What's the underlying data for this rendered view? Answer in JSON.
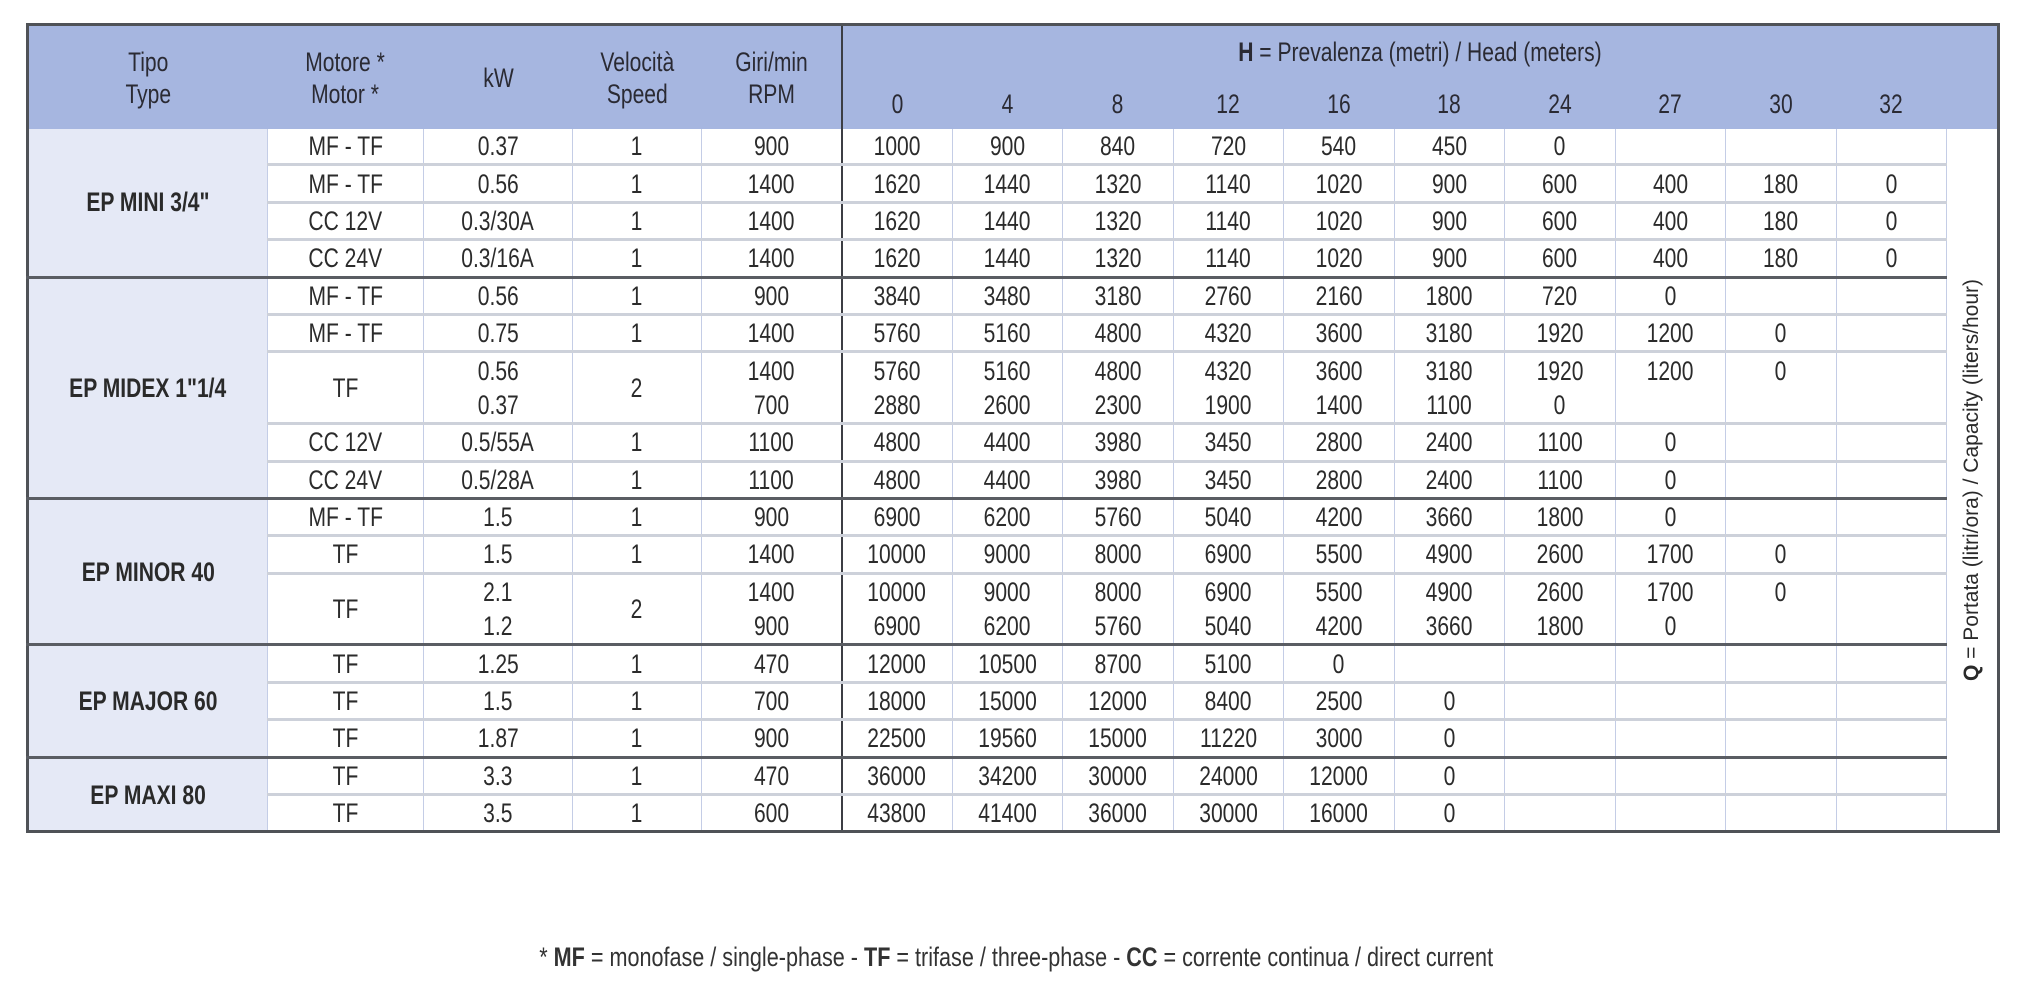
{
  "header": {
    "tipo": [
      "Tipo",
      "Type"
    ],
    "motor": [
      "Motore *",
      "Motor *"
    ],
    "kw": "kW",
    "speed": [
      "Velocità",
      "Speed"
    ],
    "rpm": [
      "Giri/min",
      "RPM"
    ],
    "head_title_bold": "H",
    "head_title_rest": " = Prevalenza (metri) / Head (meters)",
    "heads": [
      "0",
      "4",
      "8",
      "12",
      "16",
      "18",
      "24",
      "27",
      "30",
      "32"
    ]
  },
  "capacity_label": {
    "bold": "Q",
    "rest": " = Portata (litri/ora) / Capacity (liters/hour)"
  },
  "groups": [
    {
      "name": "EP MINI 3/4\"",
      "entries": [
        {
          "motor": "MF - TF",
          "speed": "1",
          "lines": [
            {
              "kw": "0.37",
              "rpm": "900",
              "q": [
                "1000",
                "900",
                "840",
                "720",
                "540",
                "450",
                "0",
                "",
                "",
                ""
              ]
            }
          ]
        },
        {
          "motor": "MF - TF",
          "speed": "1",
          "lines": [
            {
              "kw": "0.56",
              "rpm": "1400",
              "q": [
                "1620",
                "1440",
                "1320",
                "1140",
                "1020",
                "900",
                "600",
                "400",
                "180",
                "0"
              ]
            }
          ]
        },
        {
          "motor": "CC 12V",
          "speed": "1",
          "lines": [
            {
              "kw": "0.3/30A",
              "rpm": "1400",
              "q": [
                "1620",
                "1440",
                "1320",
                "1140",
                "1020",
                "900",
                "600",
                "400",
                "180",
                "0"
              ]
            }
          ]
        },
        {
          "motor": "CC 24V",
          "speed": "1",
          "lines": [
            {
              "kw": "0.3/16A",
              "rpm": "1400",
              "q": [
                "1620",
                "1440",
                "1320",
                "1140",
                "1020",
                "900",
                "600",
                "400",
                "180",
                "0"
              ]
            }
          ]
        }
      ]
    },
    {
      "name": "EP MIDEX 1\"1/4",
      "entries": [
        {
          "motor": "MF - TF",
          "speed": "1",
          "lines": [
            {
              "kw": "0.56",
              "rpm": "900",
              "q": [
                "3840",
                "3480",
                "3180",
                "2760",
                "2160",
                "1800",
                "720",
                "0",
                "",
                ""
              ]
            }
          ]
        },
        {
          "motor": "MF - TF",
          "speed": "1",
          "lines": [
            {
              "kw": "0.75",
              "rpm": "1400",
              "q": [
                "5760",
                "5160",
                "4800",
                "4320",
                "3600",
                "3180",
                "1920",
                "1200",
                "0",
                ""
              ]
            }
          ]
        },
        {
          "motor": "TF",
          "speed": "2",
          "lines": [
            {
              "kw": "0.56",
              "rpm": "1400",
              "q": [
                "5760",
                "5160",
                "4800",
                "4320",
                "3600",
                "3180",
                "1920",
                "1200",
                "0",
                ""
              ]
            },
            {
              "kw": "0.37",
              "rpm": "700",
              "q": [
                "2880",
                "2600",
                "2300",
                "1900",
                "1400",
                "1100",
                "0",
                "",
                "",
                ""
              ]
            }
          ]
        },
        {
          "motor": "CC 12V",
          "speed": "1",
          "lines": [
            {
              "kw": "0.5/55A",
              "rpm": "1100",
              "q": [
                "4800",
                "4400",
                "3980",
                "3450",
                "2800",
                "2400",
                "1100",
                "0",
                "",
                ""
              ]
            }
          ]
        },
        {
          "motor": "CC 24V",
          "speed": "1",
          "lines": [
            {
              "kw": "0.5/28A",
              "rpm": "1100",
              "q": [
                "4800",
                "4400",
                "3980",
                "3450",
                "2800",
                "2400",
                "1100",
                "0",
                "",
                ""
              ]
            }
          ]
        }
      ]
    },
    {
      "name": "EP MINOR 40",
      "entries": [
        {
          "motor": "MF - TF",
          "speed": "1",
          "lines": [
            {
              "kw": "1.5",
              "rpm": "900",
              "q": [
                "6900",
                "6200",
                "5760",
                "5040",
                "4200",
                "3660",
                "1800",
                "0",
                "",
                ""
              ]
            }
          ]
        },
        {
          "motor": "TF",
          "speed": "1",
          "lines": [
            {
              "kw": "1.5",
              "rpm": "1400",
              "q": [
                "10000",
                "9000",
                "8000",
                "6900",
                "5500",
                "4900",
                "2600",
                "1700",
                "0",
                ""
              ]
            }
          ]
        },
        {
          "motor": "TF",
          "speed": "2",
          "lines": [
            {
              "kw": "2.1",
              "rpm": "1400",
              "q": [
                "10000",
                "9000",
                "8000",
                "6900",
                "5500",
                "4900",
                "2600",
                "1700",
                "0",
                ""
              ]
            },
            {
              "kw": "1.2",
              "rpm": "900",
              "q": [
                "6900",
                "6200",
                "5760",
                "5040",
                "4200",
                "3660",
                "1800",
                "0",
                "",
                ""
              ]
            }
          ]
        }
      ]
    },
    {
      "name": "EP MAJOR 60",
      "entries": [
        {
          "motor": "TF",
          "speed": "1",
          "lines": [
            {
              "kw": "1.25",
              "rpm": "470",
              "q": [
                "12000",
                "10500",
                "8700",
                "5100",
                "0",
                "",
                "",
                "",
                "",
                ""
              ]
            }
          ]
        },
        {
          "motor": "TF",
          "speed": "1",
          "lines": [
            {
              "kw": "1.5",
              "rpm": "700",
              "q": [
                "18000",
                "15000",
                "12000",
                "8400",
                "2500",
                "0",
                "",
                "",
                "",
                ""
              ]
            }
          ]
        },
        {
          "motor": "TF",
          "speed": "1",
          "lines": [
            {
              "kw": "1.87",
              "rpm": "900",
              "q": [
                "22500",
                "19560",
                "15000",
                "11220",
                "3000",
                "0",
                "",
                "",
                "",
                ""
              ]
            }
          ]
        }
      ]
    },
    {
      "name": "EP MAXI 80",
      "entries": [
        {
          "motor": "TF",
          "speed": "1",
          "lines": [
            {
              "kw": "3.3",
              "rpm": "470",
              "q": [
                "36000",
                "34200",
                "30000",
                "24000",
                "12000",
                "0",
                "",
                "",
                "",
                ""
              ]
            }
          ]
        },
        {
          "motor": "TF",
          "speed": "1",
          "lines": [
            {
              "kw": "3.5",
              "rpm": "600",
              "q": [
                "43800",
                "41400",
                "36000",
                "30000",
                "16000",
                "0",
                "",
                "",
                "",
                ""
              ]
            }
          ]
        }
      ]
    }
  ],
  "footer": [
    {
      "text": "* ",
      "bold": false
    },
    {
      "text": "MF",
      "bold": true
    },
    {
      "text": " = monofase / single-phase - ",
      "bold": false
    },
    {
      "text": "TF",
      "bold": true
    },
    {
      "text": " = trifase / three-phase - ",
      "bold": false
    },
    {
      "text": "CC",
      "bold": true
    },
    {
      "text": " = corrente continua / direct current",
      "bold": false
    }
  ],
  "colors": {
    "header_bg": "#a6b6e0",
    "type_col_bg": "#e5e9f6",
    "border_dark": "#4f5257"
  }
}
